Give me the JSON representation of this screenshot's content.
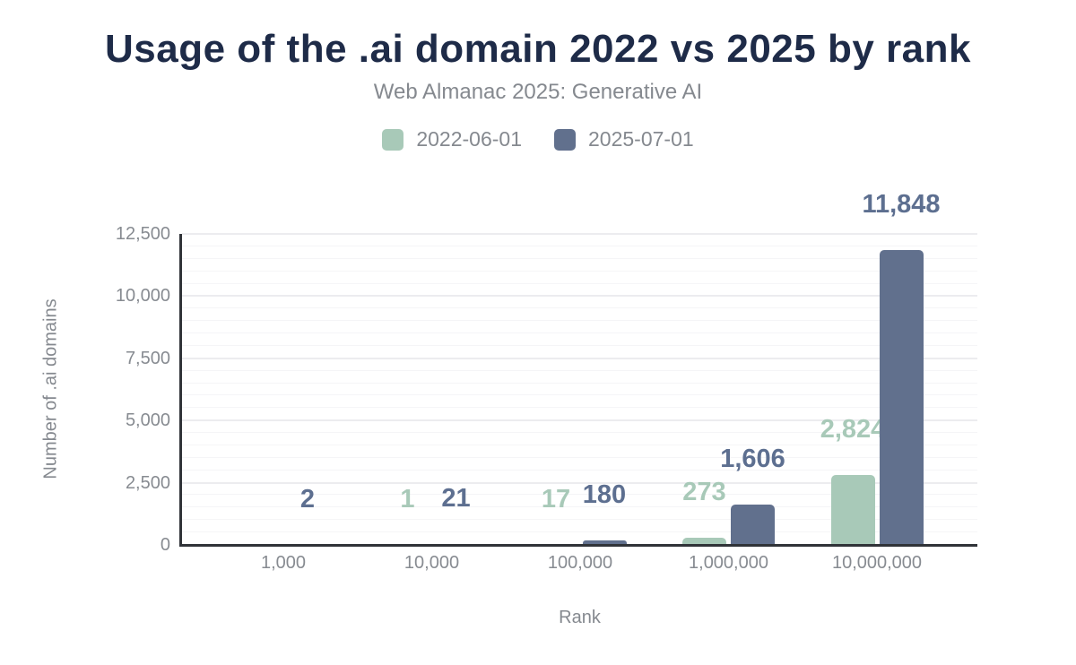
{
  "title": "Usage of the .ai domain 2022 vs 2025 by rank",
  "subtitle": "Web Almanac 2025: Generative AI",
  "colors": {
    "title": "#1e2b48",
    "axis_text": "#85898f",
    "axis_line": "#303338",
    "series_2022": "#a8c9b8",
    "series_2025": "#61708d",
    "label_2022": "#a8c9b8",
    "label_2025": "#5d6f90"
  },
  "chart_data": {
    "type": "bar",
    "title": "Usage of the .ai domain 2022 vs 2025 by rank",
    "subtitle": "Web Almanac 2025: Generative AI",
    "xlabel": "Rank",
    "ylabel": "Number of .ai domains",
    "categories": [
      "1,000",
      "10,000",
      "100,000",
      "1,000,000",
      "10,000,000"
    ],
    "series": [
      {
        "name": "2022-06-01",
        "color": "#a8c9b8",
        "label_color": "#a8c9b8",
        "values": [
          0,
          1,
          17,
          273,
          2824
        ],
        "labels": [
          "",
          "1",
          "17",
          "273",
          "2,824"
        ]
      },
      {
        "name": "2025-07-01",
        "color": "#61708d",
        "label_color": "#5d6f90",
        "values": [
          2,
          21,
          180,
          1606,
          11848
        ],
        "labels": [
          "2",
          "21",
          "180",
          "1,606",
          "11,848"
        ]
      }
    ],
    "ylim": [
      0,
      12500
    ],
    "yticks": [
      0,
      2500,
      5000,
      7500,
      10000,
      12500
    ],
    "ytick_labels": [
      "0",
      "2,500",
      "5,000",
      "7,500",
      "10,000",
      "12,500"
    ],
    "minor_tick_interval": 500,
    "grid": "horizontal",
    "legend_position": "top"
  }
}
